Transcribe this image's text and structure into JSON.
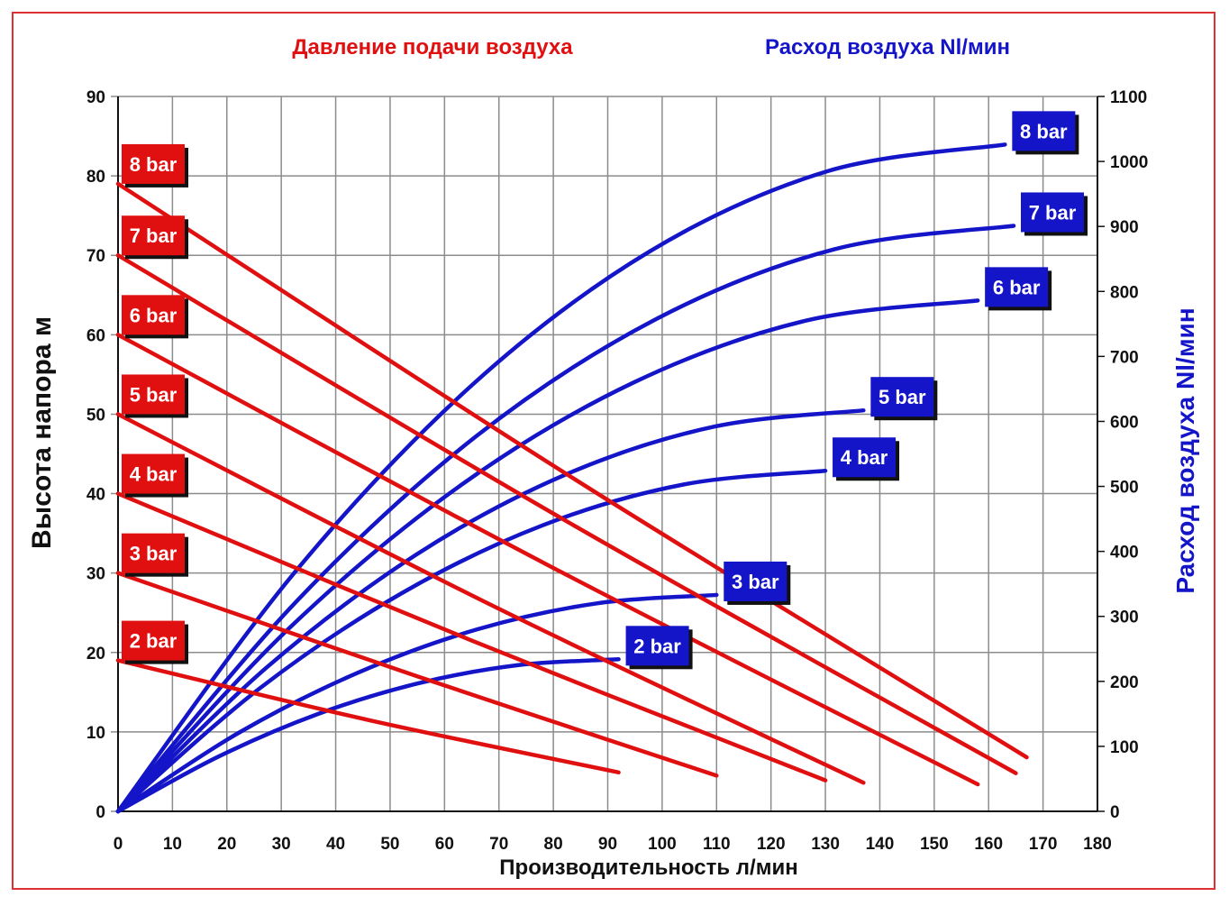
{
  "titles": {
    "left": "Давление подачи воздуха",
    "right": "Расход воздуха Nl/мин"
  },
  "colors": {
    "pressure": "#e01010",
    "air": "#1414c8",
    "frame": "#e03030",
    "grid": "#8c8c8c"
  },
  "chart_data": {
    "type": "line",
    "xlabel": "Производительность л/мин",
    "ylabel_left": "Высота напора м",
    "ylabel_right": "Расход воздуха Nl/мин",
    "xlim": [
      0,
      180
    ],
    "ylim_left": [
      0,
      90
    ],
    "ylim_right": [
      0,
      1100
    ],
    "grid": true,
    "x_ticks": [
      0,
      10,
      20,
      30,
      40,
      50,
      60,
      70,
      80,
      90,
      100,
      110,
      120,
      130,
      140,
      150,
      160,
      170,
      180
    ],
    "y_left_ticks": [
      0,
      10,
      20,
      30,
      40,
      50,
      60,
      70,
      80,
      90
    ],
    "y_right_ticks": [
      0,
      100,
      200,
      300,
      400,
      500,
      600,
      700,
      800,
      900,
      1000,
      1100
    ],
    "head_series": [
      {
        "name": "8 bar",
        "x": [
          0,
          83.5,
          167
        ],
        "y": [
          79,
          42,
          6.8
        ]
      },
      {
        "name": "7 bar",
        "x": [
          0,
          82.5,
          165
        ],
        "y": [
          70,
          36.5,
          4.8
        ]
      },
      {
        "name": "6 bar",
        "x": [
          0,
          79,
          158
        ],
        "y": [
          60,
          31,
          3.4
        ]
      },
      {
        "name": "5 bar",
        "x": [
          0,
          68.5,
          137
        ],
        "y": [
          50,
          26,
          3.6
        ]
      },
      {
        "name": "4 bar",
        "x": [
          0,
          65,
          130
        ],
        "y": [
          40,
          21.5,
          3.9
        ]
      },
      {
        "name": "3 bar",
        "x": [
          0,
          55,
          110
        ],
        "y": [
          30,
          17,
          4.5
        ]
      },
      {
        "name": "2 bar",
        "x": [
          0,
          46,
          92
        ],
        "y": [
          19,
          11.5,
          4.9
        ]
      }
    ],
    "air_series": [
      {
        "name": "8 bar",
        "x": [
          0,
          32.6,
          65.2,
          97.8,
          130.4,
          163
        ],
        "y": [
          0,
          369,
          657,
          862,
          985,
          1026
        ]
      },
      {
        "name": "7 bar",
        "x": [
          0,
          32.9,
          65.8,
          98.8,
          131.7,
          164.6
        ],
        "y": [
          0,
          324,
          577,
          757,
          865,
          901
        ]
      },
      {
        "name": "6 bar",
        "x": [
          0,
          31.6,
          63.2,
          94.8,
          126.4,
          158
        ],
        "y": [
          0,
          283,
          503,
          660,
          755,
          786
        ]
      },
      {
        "name": "5 bar",
        "x": [
          0,
          27.4,
          54.8,
          82.2,
          109.6,
          137
        ],
        "y": [
          0,
          222,
          395,
          518,
          592,
          617
        ]
      },
      {
        "name": "4 bar",
        "x": [
          0,
          26,
          52,
          78,
          104,
          130
        ],
        "y": [
          0,
          189,
          335,
          440,
          503,
          524
        ]
      },
      {
        "name": "3 bar",
        "x": [
          0,
          22,
          44,
          66,
          88,
          110
        ],
        "y": [
          0,
          120,
          213,
          280,
          320,
          333
        ]
      },
      {
        "name": "2 bar",
        "x": [
          0,
          18.4,
          36.8,
          55.2,
          73.6,
          92
        ],
        "y": [
          0,
          84,
          150,
          197,
          225,
          234
        ]
      }
    ]
  }
}
